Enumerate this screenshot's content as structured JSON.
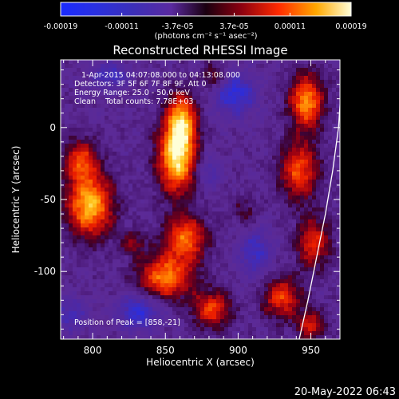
{
  "colorbar": {
    "ticks": [
      "-0.00019",
      "-0.00011",
      "-3.7e-05",
      "3.7e-05",
      "0.00011",
      "0.00019"
    ],
    "tick_values": [
      -0.00019,
      -0.00011,
      -3.7e-05,
      3.7e-05,
      0.00011,
      0.00019
    ],
    "range": [
      -0.00019,
      0.00019
    ],
    "unit_label": "(photons cm⁻² s⁻¹ asec⁻²)"
  },
  "annotations": {
    "time_range": "1-Apr-2015 04:07:08.000 to 04:13:08.000",
    "detectors": "Detectors: 3F 5F 6F 7F 8F 9F, Att 0",
    "energy": "Energy Range: 25.0 - 50.0 keV",
    "clean": "Clean    Total counts: 7.78E+03",
    "peak": "Position of Peak = [858,-21]"
  },
  "footer_date": "20-May-2022 06:43",
  "chart_data": {
    "type": "heatmap",
    "title": "Reconstructed RHESSI Image",
    "xlabel": "Heliocentric X (arcsec)",
    "ylabel": "Heliocentric Y (arcsec)",
    "xlim": [
      778,
      970
    ],
    "ylim": [
      -147,
      47
    ],
    "xticks": [
      800,
      850,
      900,
      950
    ],
    "yticks": [
      0,
      -50,
      -100
    ],
    "xtick_labels": [
      "800",
      "850",
      "900",
      "950"
    ],
    "ytick_labels": [
      "0",
      "-50",
      "-100"
    ],
    "peak": [
      858,
      -21
    ],
    "limb": [
      [
        942,
        -147
      ],
      [
        948,
        -120
      ],
      [
        954,
        -90
      ],
      [
        960,
        -60
      ],
      [
        965,
        -30
      ],
      [
        969,
        0
      ],
      [
        971,
        30
      ]
    ],
    "sources": [
      {
        "x": 858,
        "y": -21,
        "amp": 1.0,
        "sx": 9,
        "sy": 17
      },
      {
        "x": 861,
        "y": 5,
        "amp": 0.78,
        "sx": 7,
        "sy": 13
      },
      {
        "x": 798,
        "y": -54,
        "amp": 0.9,
        "sx": 11,
        "sy": 15
      },
      {
        "x": 792,
        "y": -23,
        "amp": 0.6,
        "sx": 8,
        "sy": 10
      },
      {
        "x": 864,
        "y": -77,
        "amp": 0.7,
        "sx": 10,
        "sy": 11
      },
      {
        "x": 850,
        "y": -104,
        "amp": 0.75,
        "sx": 13,
        "sy": 11
      },
      {
        "x": 882,
        "y": -126,
        "amp": 0.6,
        "sx": 9,
        "sy": 9
      },
      {
        "x": 947,
        "y": 18,
        "amp": 0.8,
        "sx": 8,
        "sy": 13
      },
      {
        "x": 942,
        "y": -30,
        "amp": 0.65,
        "sx": 9,
        "sy": 14
      },
      {
        "x": 952,
        "y": -80,
        "amp": 0.55,
        "sx": 8,
        "sy": 12
      },
      {
        "x": 930,
        "y": -118,
        "amp": 0.6,
        "sx": 9,
        "sy": 10
      },
      {
        "x": 950,
        "y": -137,
        "amp": 0.5,
        "sx": 7,
        "sy": 7
      },
      {
        "x": 884,
        "y": 35,
        "amp": 0.35,
        "sx": 6,
        "sy": 6
      },
      {
        "x": 828,
        "y": -80,
        "amp": 0.3,
        "sx": 6,
        "sy": 6
      },
      {
        "x": 905,
        "y": -60,
        "amp": 0.25,
        "sx": 6,
        "sy": 8
      }
    ],
    "negatives": [
      {
        "x": 898,
        "y": 23,
        "amp": 0.55,
        "sx": 10,
        "sy": 10
      },
      {
        "x": 832,
        "y": -128,
        "amp": 0.5,
        "sx": 11,
        "sy": 9
      },
      {
        "x": 812,
        "y": 36,
        "amp": 0.4,
        "sx": 9,
        "sy": 7
      },
      {
        "x": 912,
        "y": -86,
        "amp": 0.4,
        "sx": 8,
        "sy": 12
      },
      {
        "x": 880,
        "y": -30,
        "amp": 0.3,
        "sx": 6,
        "sy": 8
      },
      {
        "x": 785,
        "y": -130,
        "amp": 0.35,
        "sx": 8,
        "sy": 8
      }
    ]
  }
}
